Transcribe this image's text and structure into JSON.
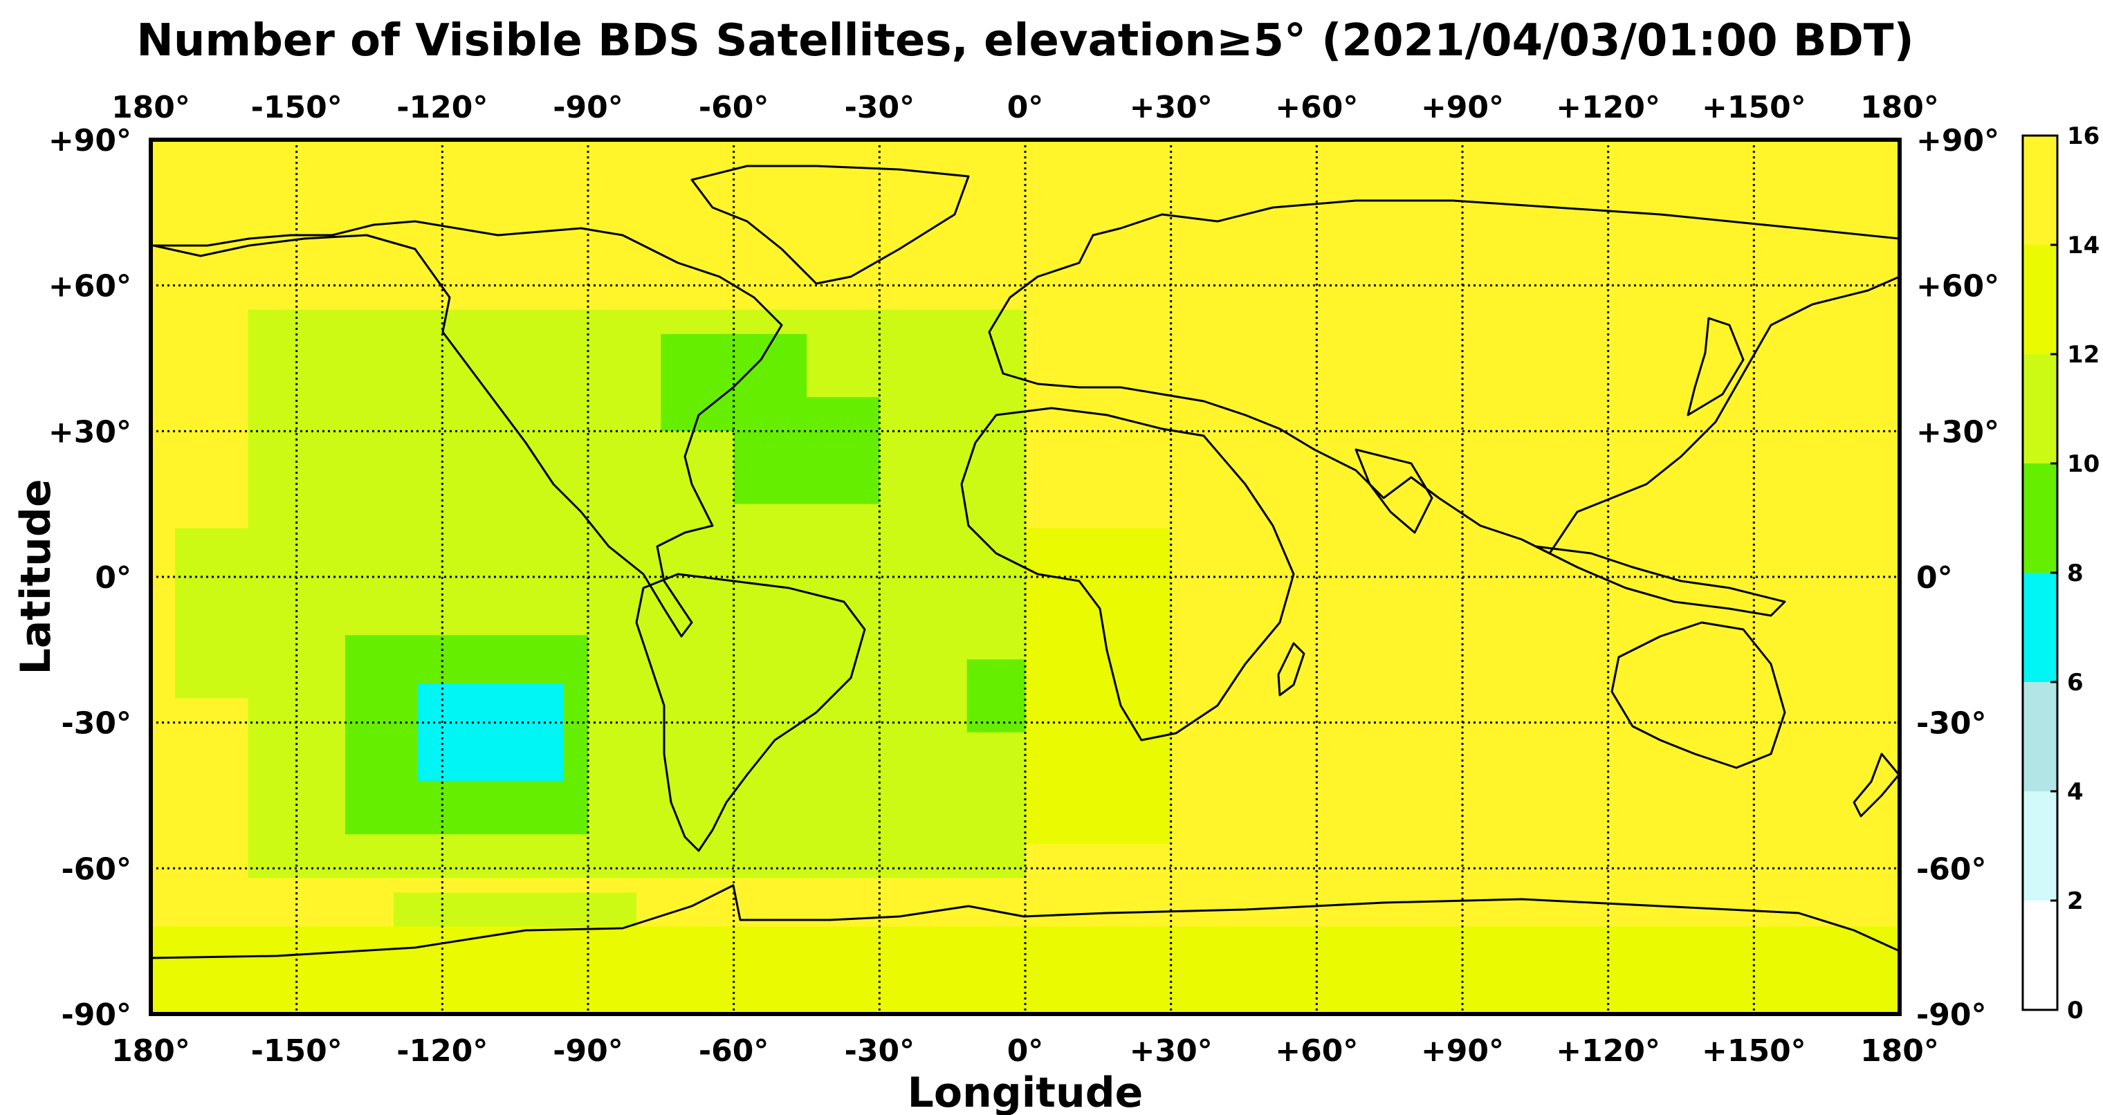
{
  "title": "Number of Visible BDS Satellites, elevation≥5° (2021/04/03/01:00 BDT)",
  "xlabel": "Longitude",
  "ylabel": "Latitude",
  "lon_ticks": [
    "180°",
    "-150°",
    "-120°",
    "-90°",
    "-60°",
    "-30°",
    "0°",
    "+30°",
    "+60°",
    "+90°",
    "+120°",
    "+150°",
    "180°"
  ],
  "lat_ticks": [
    "+90°",
    "+60°",
    "+30°",
    "0°",
    "-30°",
    "-60°",
    "-90°"
  ],
  "colorbar": {
    "ticks": [
      "0",
      "2",
      "4",
      "6",
      "8",
      "10",
      "12",
      "14",
      "16"
    ],
    "levels": [
      {
        "from": 0,
        "to": 2,
        "color": "#ffffff"
      },
      {
        "from": 2,
        "to": 4,
        "color": "#d2fafa"
      },
      {
        "from": 4,
        "to": 6,
        "color": "#b2e6e6"
      },
      {
        "from": 6,
        "to": 8,
        "color": "#00f5f5"
      },
      {
        "from": 8,
        "to": 10,
        "color": "#66ee00"
      },
      {
        "from": 10,
        "to": 12,
        "color": "#ccfa14"
      },
      {
        "from": 12,
        "to": 14,
        "color": "#eafa00"
      },
      {
        "from": 14,
        "to": 16,
        "color": "#fff52a"
      }
    ]
  },
  "chart_data": {
    "type": "heatmap",
    "title": "Number of Visible BDS Satellites, elevation≥5° (2021/04/03/01:00 BDT)",
    "xlabel": "Longitude",
    "ylabel": "Latitude",
    "xlim": [
      -180,
      180
    ],
    "ylim": [
      -90,
      90
    ],
    "zlim": [
      0,
      16
    ],
    "grid": true,
    "background_value": 15,
    "regions": [
      {
        "name": "americas-pacific-band",
        "lon": [
          -160,
          0
        ],
        "lat": [
          -62,
          55
        ],
        "value": 11
      },
      {
        "name": "southwest-pacific-fringe",
        "lon": [
          -175,
          -150
        ],
        "lat": [
          -25,
          10
        ],
        "value": 11
      },
      {
        "name": "north-atlantic-low",
        "lon": [
          -75,
          -45
        ],
        "lat": [
          30,
          50
        ],
        "value": 9
      },
      {
        "name": "central-atlantic-low",
        "lon": [
          -60,
          -30
        ],
        "lat": [
          15,
          37
        ],
        "value": 9
      },
      {
        "name": "south-atlantic-low",
        "lon": [
          -12,
          0
        ],
        "lat": [
          -32,
          -17
        ],
        "value": 9
      },
      {
        "name": "southeast-pacific-low",
        "lon": [
          -140,
          -90
        ],
        "lat": [
          -53,
          -12
        ],
        "value": 9
      },
      {
        "name": "southeast-pacific-minimum",
        "lon": [
          -125,
          -95
        ],
        "lat": [
          -42,
          -22
        ],
        "value": 7
      },
      {
        "name": "antarctic-west-band",
        "lon": [
          -130,
          -80
        ],
        "lat": [
          -90,
          -65
        ],
        "value": 11
      },
      {
        "name": "southern-ocean-band",
        "lon": [
          -180,
          180
        ],
        "lat": [
          -90,
          -72
        ],
        "value": 13
      },
      {
        "name": "africa-atlantic-band",
        "lon": [
          0,
          30
        ],
        "lat": [
          -55,
          10
        ],
        "value": 13
      }
    ]
  }
}
